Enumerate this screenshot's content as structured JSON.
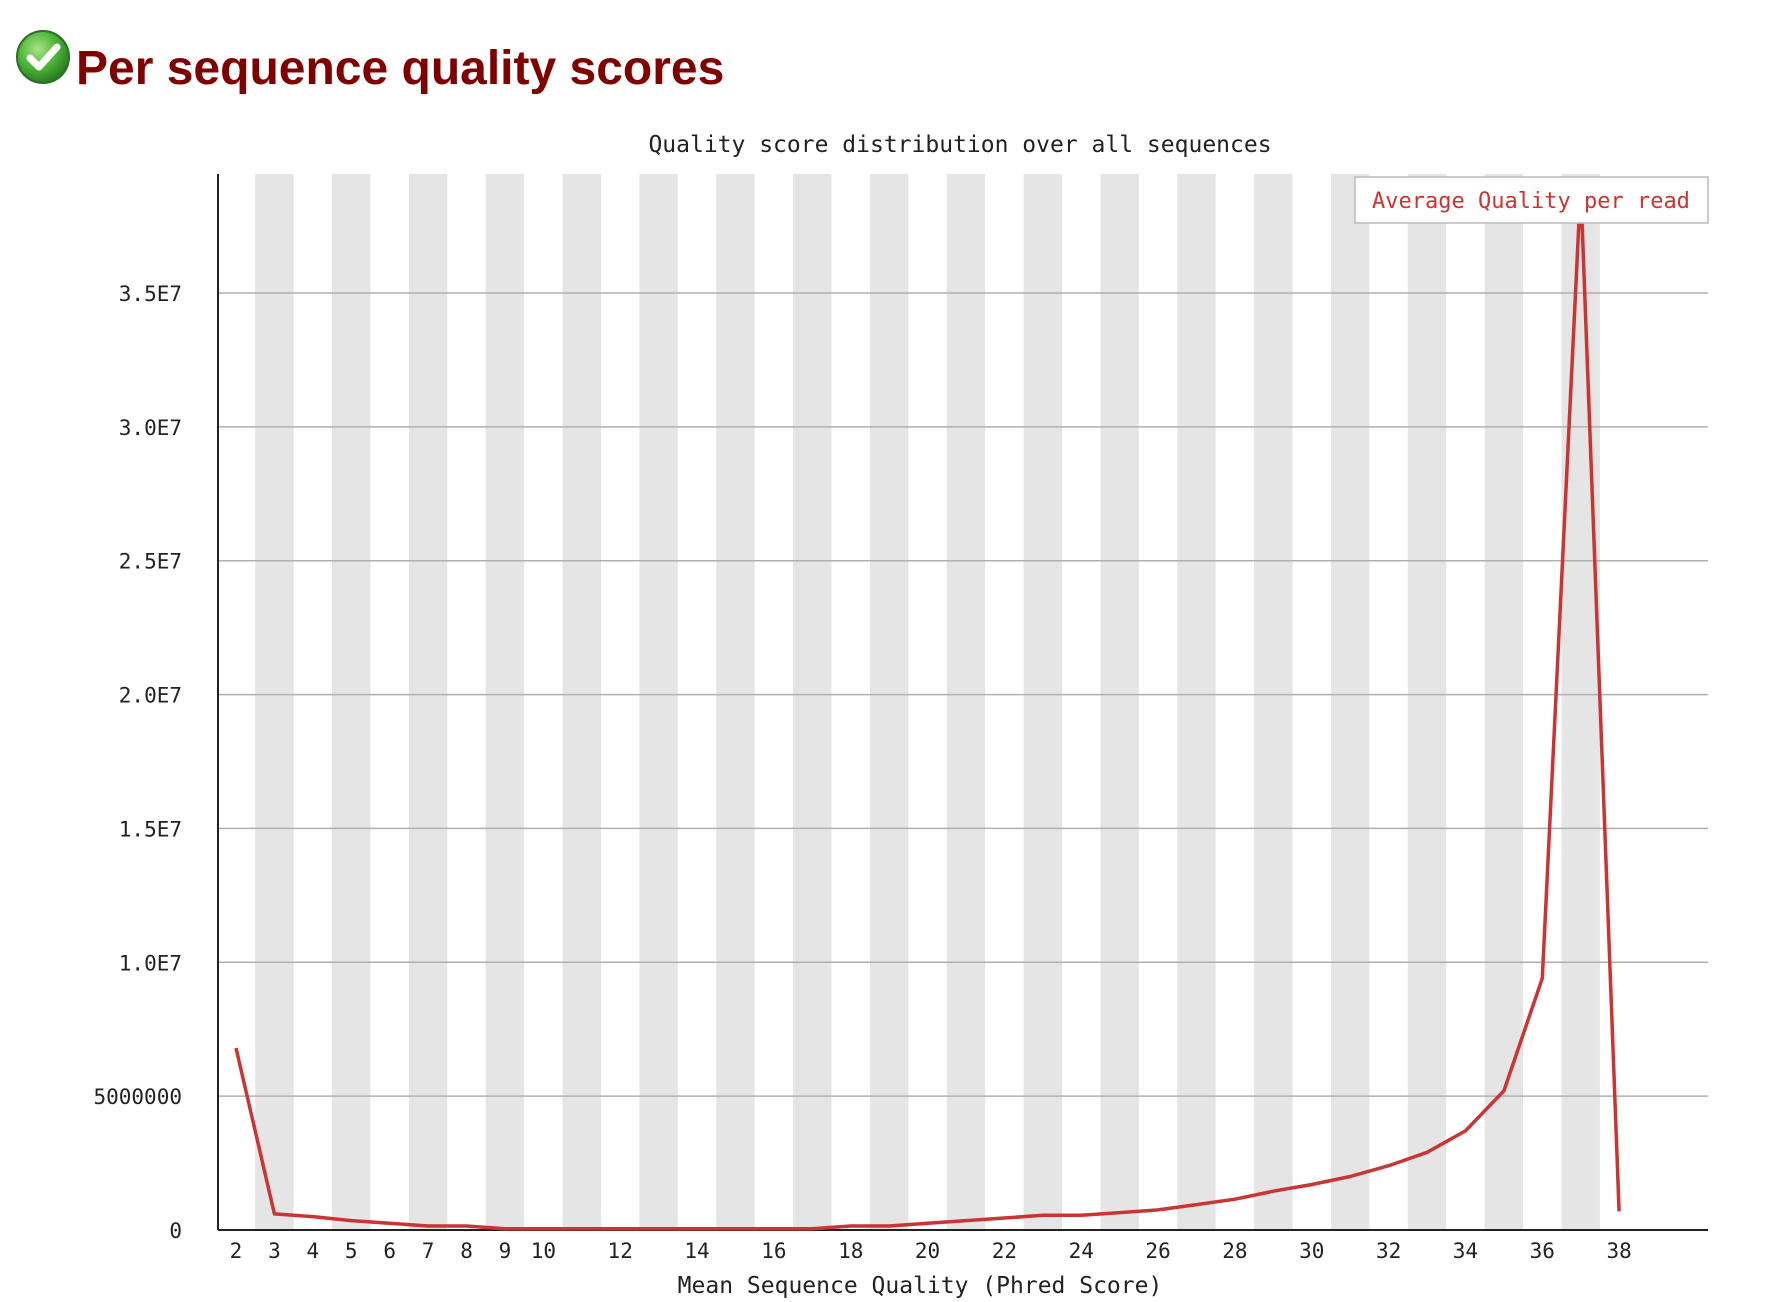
{
  "header": {
    "title": "Per sequence quality scores",
    "status_icon": "check-circle-icon",
    "status_color": "#3aa03a"
  },
  "chart_data": {
    "type": "line",
    "title": "Quality score distribution over all sequences",
    "xlabel": "Mean Sequence Quality (Phred Score)",
    "ylabel": "",
    "xlim": [
      2,
      38
    ],
    "ylim": [
      0,
      38000000
    ],
    "x_ticks": [
      "2",
      "3",
      "4",
      "5",
      "6",
      "7",
      "8",
      "9",
      "10",
      "12",
      "14",
      "16",
      "18",
      "20",
      "22",
      "24",
      "26",
      "28",
      "30",
      "32",
      "34",
      "36",
      "38"
    ],
    "y_ticks": [
      "0",
      "5000000",
      "1.0E7",
      "1.5E7",
      "2.0E7",
      "2.5E7",
      "3.0E7",
      "3.5E7"
    ],
    "grid": true,
    "legend_position": "top-right",
    "series": [
      {
        "name": "Average Quality per read",
        "color": "#cc3333",
        "x": [
          2,
          3,
          4,
          5,
          6,
          7,
          8,
          9,
          10,
          11,
          12,
          13,
          14,
          15,
          16,
          17,
          18,
          19,
          20,
          21,
          22,
          23,
          24,
          25,
          26,
          27,
          28,
          29,
          30,
          31,
          32,
          33,
          34,
          35,
          36,
          37,
          38
        ],
        "y": [
          6800000,
          600000,
          500000,
          350000,
          250000,
          150000,
          150000,
          50000,
          50000,
          50000,
          50000,
          50000,
          50000,
          50000,
          50000,
          50000,
          150000,
          150000,
          250000,
          350000,
          450000,
          550000,
          550000,
          650000,
          750000,
          950000,
          1150000,
          1450000,
          1700000,
          2000000,
          2400000,
          2900000,
          3700000,
          5200000,
          9400000,
          39000000,
          700000
        ]
      }
    ]
  }
}
